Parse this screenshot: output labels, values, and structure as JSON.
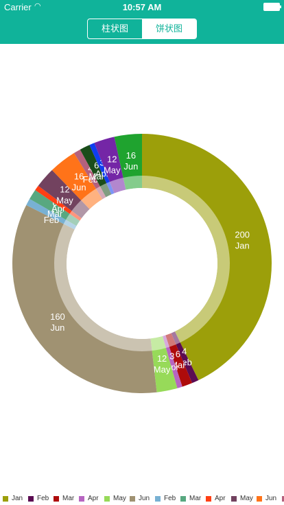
{
  "status_bar": {
    "carrier": "Carrier",
    "time": "10:57 AM"
  },
  "segment": {
    "tabs": [
      "柱状图",
      "饼状图"
    ],
    "active_index": 1
  },
  "chart_data": {
    "type": "pie",
    "style": "donut",
    "slices": [
      {
        "label": "Jan",
        "value": 200,
        "color": "#9c9f0a"
      },
      {
        "label": "Feb",
        "value": 4,
        "color": "#5b0c52"
      },
      {
        "label": "Mar",
        "value": 6,
        "color": "#ae0b0b"
      },
      {
        "label": "Apr",
        "value": 3,
        "color": "#b765c1"
      },
      {
        "label": "May",
        "value": 12,
        "color": "#97da59"
      },
      {
        "label": "Jun",
        "value": 160,
        "color": "#a09272"
      },
      {
        "label": "Feb",
        "value": 4,
        "color": "#78b1d3"
      },
      {
        "label": "Mar",
        "value": 6,
        "color": "#58a880"
      },
      {
        "label": "Apr",
        "value": 3,
        "color": "#ff3f14"
      },
      {
        "label": "May",
        "value": 12,
        "color": "#72425f"
      },
      {
        "label": "Jun",
        "value": 16,
        "color": "#ff7319"
      },
      {
        "label": "Feb",
        "value": 4,
        "color": "#b4617d"
      },
      {
        "label": "Mar",
        "value": 6,
        "color": "#1a4d1a"
      },
      {
        "label": "Apr",
        "value": 3,
        "color": "#0f3ef0"
      },
      {
        "label": "May",
        "value": 12,
        "color": "#7426a6"
      },
      {
        "label": "Jun",
        "value": 16,
        "color": "#1fa32f"
      }
    ],
    "legend_placement": "bottom"
  }
}
